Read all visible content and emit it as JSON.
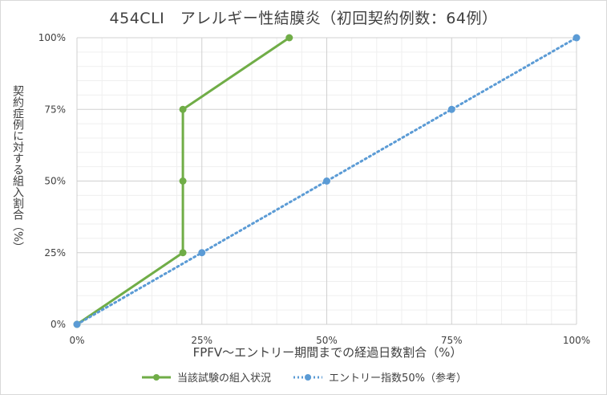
{
  "chart_data": {
    "type": "line",
    "title": "454CLI　アレルギー性結膜炎（初回契約例数：64例）",
    "xlabel": "FPFV～エントリー期間までの経過日数割合（%）",
    "ylabel": "契約症例に対する組入割合（%）",
    "xlim": [
      0,
      100
    ],
    "ylim": [
      0,
      100
    ],
    "x_ticks": [
      "0%",
      "25%",
      "50%",
      "75%",
      "100%"
    ],
    "y_ticks": [
      "0%",
      "25%",
      "50%",
      "75%",
      "100%"
    ],
    "grid": true,
    "legend_position": "bottom",
    "series": [
      {
        "name": "当該試験の組入状況",
        "color": "#70ad47",
        "style": "solid",
        "x": [
          0,
          21.2,
          21.2,
          21.2,
          42.5
        ],
        "y": [
          0,
          25,
          50,
          75,
          100
        ]
      },
      {
        "name": "エントリー指数50%（参考）",
        "color": "#5b9bd5",
        "style": "dotted",
        "x": [
          0,
          25,
          50,
          75,
          100
        ],
        "y": [
          0,
          25,
          50,
          75,
          100
        ]
      }
    ]
  }
}
